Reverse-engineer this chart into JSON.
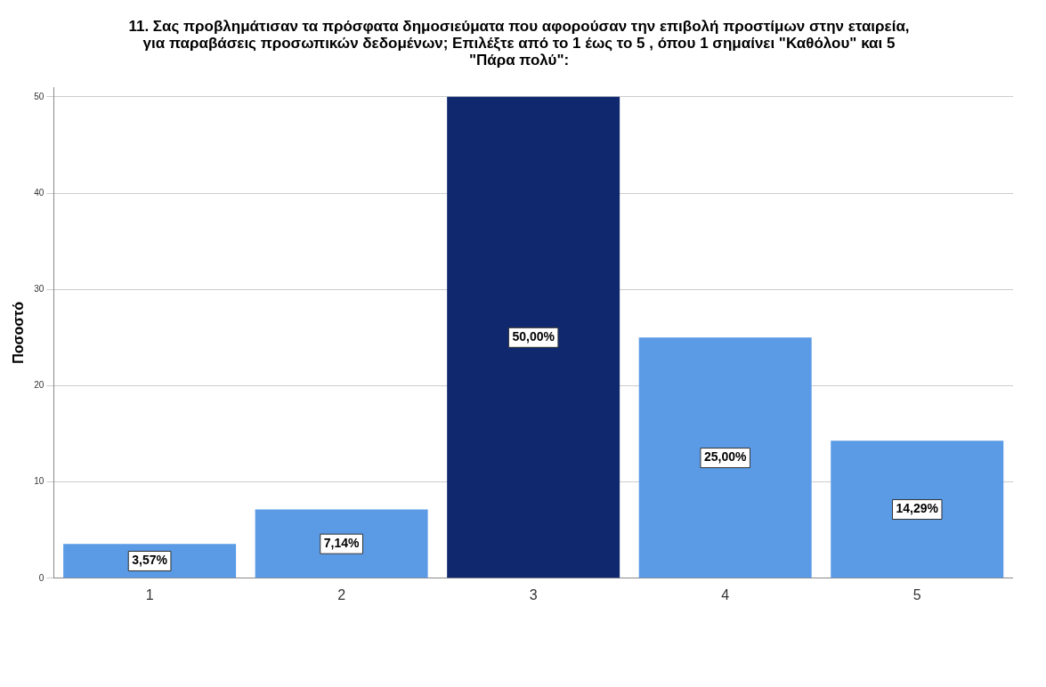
{
  "chart_data": {
    "type": "bar",
    "title": "11. Σας προβλημάτισαν τα πρόσφατα δημοσιεύματα που αφορούσαν την επιβολή προστίμων στην εταιρεία, για παραβάσεις προσωπικών δεδομένων; Επιλέξτε από το 1 έως το 5 , όπου 1 σημαίνει \"Καθόλου\" και 5 \"Πάρα πολύ\":",
    "ylabel": "Ποσοστό",
    "categories": [
      "1",
      "2",
      "3",
      "4",
      "5"
    ],
    "values": [
      3.57,
      7.14,
      50,
      25,
      14.29
    ],
    "colors": [
      "#5b9be6",
      "#5b9be6",
      "#10296e",
      "#5b9be6",
      "#5b9be6"
    ],
    "value_labels": [
      "3,57%",
      "7,14%",
      "50,00%",
      "25,00%",
      "14,29%"
    ],
    "ylim": [
      0,
      51
    ],
    "yticks": [
      0,
      10,
      20,
      30,
      40,
      50
    ],
    "grid": "y"
  }
}
